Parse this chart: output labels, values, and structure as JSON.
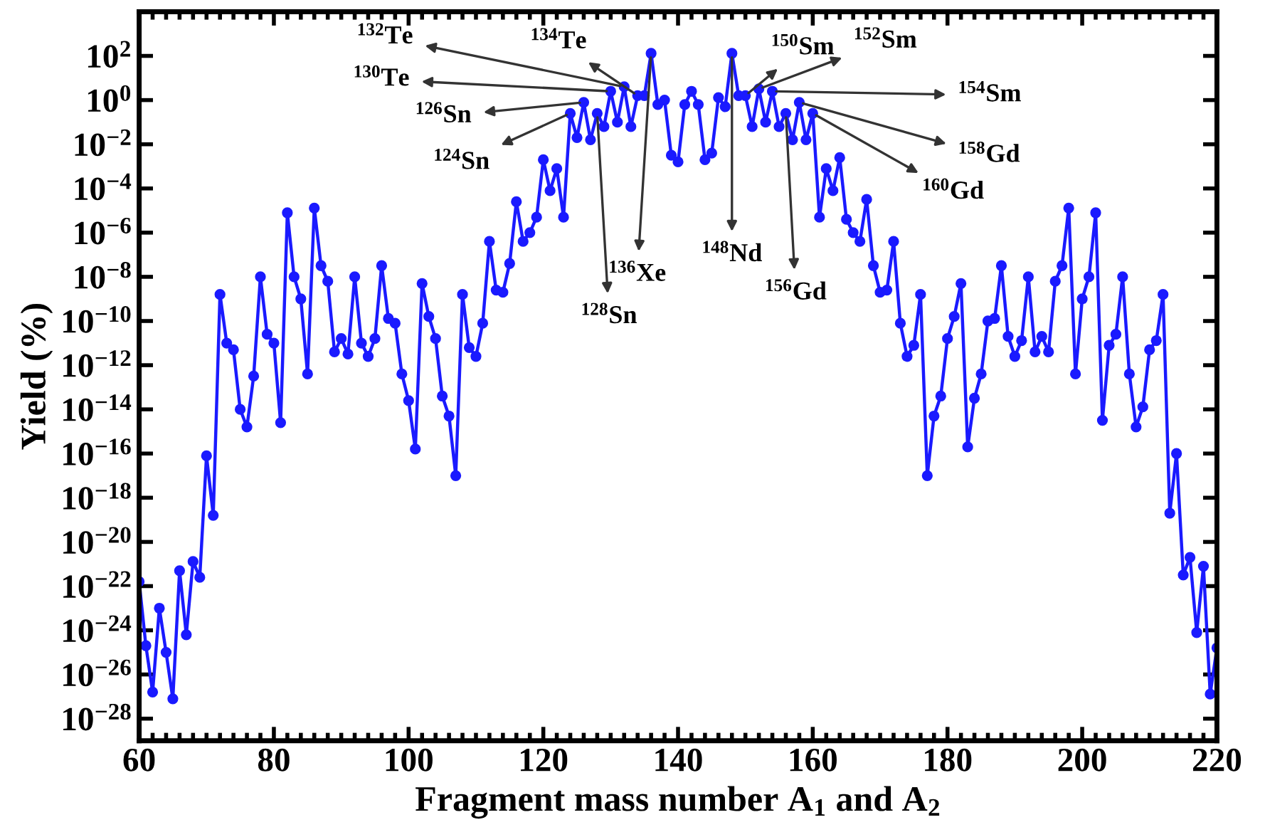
{
  "chart_data": {
    "type": "line",
    "xlabel": "Fragment mass number A$_{1}$ and A$_{2}$",
    "ylabel": "Yield (%)",
    "log": "y",
    "marker": "circle",
    "line_style": "solid",
    "grid": false,
    "xlim": [
      60,
      220
    ],
    "xticks": [
      60,
      80,
      100,
      120,
      140,
      160,
      180,
      200,
      220
    ],
    "ylim": [
      1e-29,
      10000.0
    ],
    "yticks": [
      {
        "value": 100.0,
        "label": "10$^{2}$"
      },
      {
        "value": 1,
        "label": "10$^{0}$"
      },
      {
        "value": 0.01,
        "label": "10$^{−2}$"
      },
      {
        "value": 0.0001,
        "label": "10$^{−4}$"
      },
      {
        "value": 1e-06,
        "label": "10$^{−6}$"
      },
      {
        "value": 1e-08,
        "label": "10$^{−8}$"
      },
      {
        "value": 1e-10,
        "label": "10$^{−10}$"
      },
      {
        "value": 1e-12,
        "label": "10$^{−12}$"
      },
      {
        "value": 1e-14,
        "label": "10$^{−14}$"
      },
      {
        "value": 1e-16,
        "label": "10$^{−16}$"
      },
      {
        "value": 1e-18,
        "label": "10$^{−18}$"
      },
      {
        "value": 1e-20,
        "label": "10$^{−20}$"
      },
      {
        "value": 1e-22,
        "label": "10$^{−22}$"
      },
      {
        "value": 1e-24,
        "label": "10$^{−24}$"
      },
      {
        "value": 1e-26,
        "label": "10$^{−26}$"
      },
      {
        "value": 1e-28,
        "label": "10$^{−28}$"
      }
    ],
    "x": [
      60,
      61,
      62,
      63,
      64,
      65,
      66,
      67,
      68,
      69,
      70,
      71,
      72,
      73,
      74,
      75,
      76,
      77,
      78,
      79,
      80,
      81,
      82,
      83,
      84,
      85,
      86,
      87,
      88,
      89,
      90,
      91,
      92,
      93,
      94,
      95,
      96,
      97,
      98,
      99,
      100,
      101,
      102,
      103,
      104,
      105,
      106,
      107,
      108,
      109,
      110,
      111,
      112,
      113,
      114,
      115,
      116,
      117,
      118,
      119,
      120,
      121,
      122,
      123,
      124,
      125,
      126,
      127,
      128,
      129,
      130,
      131,
      132,
      133,
      134,
      135,
      136,
      137,
      138,
      139,
      140,
      141,
      142,
      143,
      144,
      145,
      146,
      147,
      148,
      149,
      150,
      151,
      152,
      153,
      154,
      155,
      156,
      157,
      158,
      159,
      160,
      161,
      162,
      163,
      164,
      165,
      166,
      167,
      168,
      169,
      170,
      171,
      172,
      173,
      174,
      175,
      176,
      177,
      178,
      179,
      180,
      181,
      182,
      183,
      184,
      185,
      186,
      187,
      188,
      189,
      190,
      191,
      192,
      193,
      194,
      195,
      196,
      197,
      198,
      199,
      200,
      201,
      202,
      203,
      204,
      205,
      206,
      207,
      208,
      209,
      210,
      211,
      212,
      213,
      214,
      215,
      216,
      217,
      218,
      219,
      220
    ],
    "series": [
      {
        "color": "#1a1aff",
        "values": [
          1.6e-22,
          2e-25,
          1.6e-27,
          1e-23,
          1e-25,
          7.9e-28,
          5e-22,
          6.3e-25,
          1.3e-21,
          2.5e-22,
          7.9e-17,
          1.6e-19,
          1.6e-09,
          1e-11,
          5e-12,
          1e-14,
          1.6e-15,
          3.2e-13,
          1e-08,
          2.5e-11,
          1e-11,
          2.5e-15,
          7.9e-06,
          1e-08,
          1e-09,
          4e-13,
          1.3e-05,
          3.2e-08,
          6.3e-09,
          4e-12,
          1.6e-11,
          3.2e-12,
          1e-08,
          1e-11,
          2.5e-12,
          1.6e-11,
          3.2e-08,
          1.3e-10,
          7.9e-11,
          4e-13,
          2.5e-14,
          1.6e-16,
          5e-09,
          1.6e-10,
          1.6e-11,
          4e-14,
          5e-15,
          1e-17,
          1.6e-09,
          6.3e-12,
          2.5e-12,
          7.9e-11,
          4e-07,
          2.5e-09,
          2e-09,
          4e-08,
          2.5e-05,
          4e-07,
          1e-06,
          5e-06,
          0.002,
          7.9e-05,
          0.00079,
          5e-06,
          0.25,
          0.02,
          0.79,
          0.016,
          0.25,
          0.063,
          2.5,
          0.1,
          4,
          0.063,
          1.6,
          1.6,
          130,
          0.63,
          1,
          0.0032,
          0.0016,
          0.63,
          2.5,
          0.63,
          0.002,
          0.004,
          1.3,
          0.5,
          130,
          1.6,
          1.6,
          0.063,
          3.2,
          0.1,
          2.5,
          0.063,
          0.25,
          0.016,
          0.79,
          0.016,
          0.25,
          5e-06,
          0.00079,
          7.9e-05,
          0.0025,
          4e-06,
          1e-06,
          4e-07,
          3.2e-05,
          3.2e-08,
          2e-09,
          2.5e-09,
          4e-07,
          7.9e-11,
          2.5e-12,
          7.9e-12,
          1.6e-09,
          1e-17,
          5e-15,
          4e-14,
          1.6e-11,
          1.6e-10,
          5e-09,
          2e-16,
          3.2e-14,
          4e-13,
          1e-10,
          1.3e-10,
          3.2e-08,
          2e-11,
          2.5e-12,
          1.3e-11,
          1e-08,
          4e-12,
          2e-11,
          4e-12,
          6.3e-09,
          3.2e-08,
          1.3e-05,
          4e-13,
          1e-09,
          1e-08,
          7.9e-06,
          3.2e-15,
          7.9e-12,
          2.5e-11,
          1e-08,
          4e-13,
          1.6e-15,
          1.3e-14,
          5e-12,
          1.3e-11,
          1.6e-09,
          2e-19,
          1e-16,
          3.2e-22,
          2e-21,
          7.9e-25,
          7.9e-22,
          1.3e-27,
          1.6e-25
        ]
      }
    ],
    "annotations": [
      {
        "text": "$^{132}$Te",
        "x": 132,
        "y": 4
      },
      {
        "text": "$^{130}$Te",
        "x": 130,
        "y": 2.5
      },
      {
        "text": "$^{126}$Sn",
        "x": 126,
        "y": 0.79
      },
      {
        "text": "$^{124}$Sn",
        "x": 124,
        "y": 0.25
      },
      {
        "text": "$^{128}$Sn",
        "x": 128,
        "y": 0.25
      },
      {
        "text": "$^{134}$Te",
        "x": 134,
        "y": 1.6
      },
      {
        "text": "$^{136}$Xe",
        "x": 136,
        "y": 130
      },
      {
        "text": "$^{148}$Nd",
        "x": 148,
        "y": 130
      },
      {
        "text": "$^{150}$Sm",
        "x": 150,
        "y": 1.6
      },
      {
        "text": "$^{152}$Sm",
        "x": 152,
        "y": 3.2
      },
      {
        "text": "$^{154}$Sm",
        "x": 154,
        "y": 2.5
      },
      {
        "text": "$^{156}$Gd",
        "x": 156,
        "y": 0.25
      },
      {
        "text": "$^{158}$Gd",
        "x": 158,
        "y": 0.79
      },
      {
        "text": "$^{160}$Gd",
        "x": 160,
        "y": 0.25
      }
    ]
  }
}
